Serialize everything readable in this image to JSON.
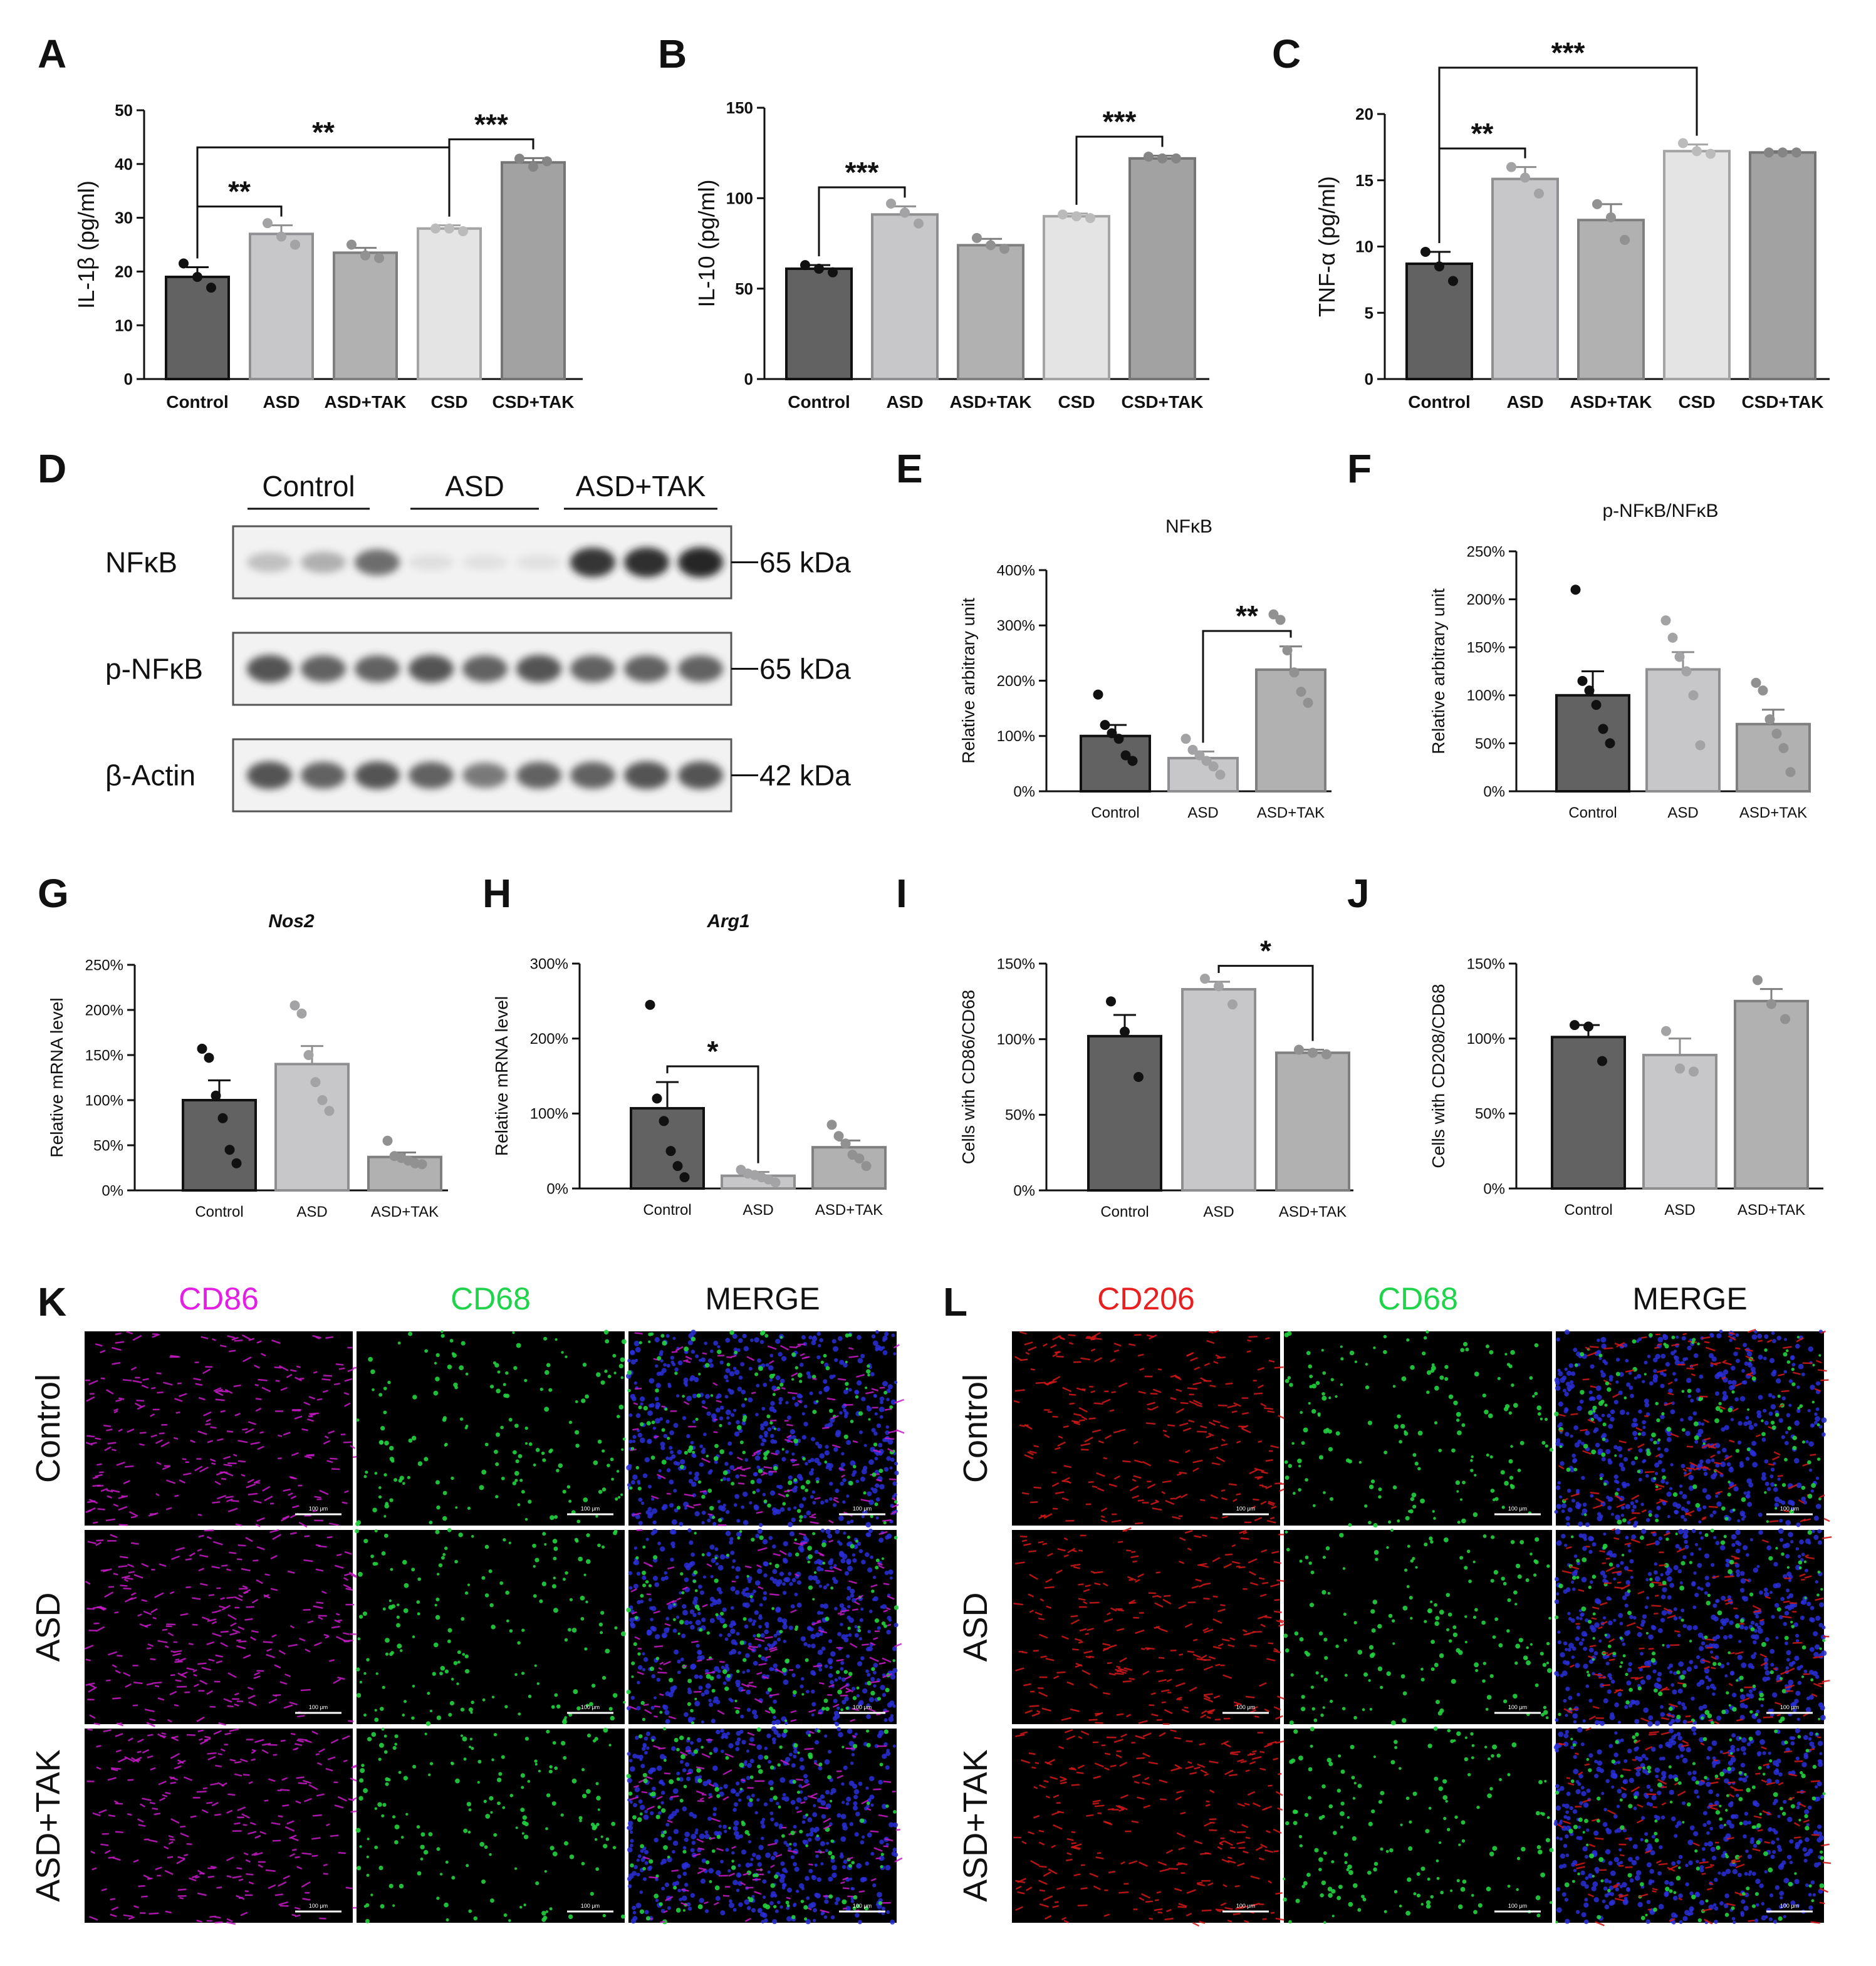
{
  "colors": {
    "control": "#626262",
    "asd": "#c7c7c9",
    "asd_tak": "#b1b1b2",
    "csd": "#e4e4e5",
    "csd_tak": "#a2a2a3",
    "axis": "#111111"
  },
  "panel_letters": [
    "A",
    "B",
    "C",
    "D",
    "E",
    "F",
    "G",
    "H",
    "I",
    "J",
    "K",
    "L"
  ],
  "chart_data": [
    {
      "id": "A",
      "type": "bar",
      "title": "",
      "xlabel": "",
      "ylabel": "IL-1β (pg/ml)",
      "ylim": [
        0,
        50
      ],
      "yticks": [
        0,
        10,
        20,
        30,
        40,
        50
      ],
      "tick_suffix": "",
      "categories": [
        "Control",
        "ASD",
        "ASD+TAK",
        "CSD",
        "CSD+TAK"
      ],
      "values": [
        19,
        27,
        23.5,
        28,
        40.3
      ],
      "sem": [
        1.8,
        1.6,
        0.9,
        0.6,
        0.8
      ],
      "points": [
        [
          21.5,
          19,
          17
        ],
        [
          29,
          26.5,
          25
        ],
        [
          25,
          23,
          22.5
        ],
        [
          28,
          28,
          27.5
        ],
        [
          41,
          39.5,
          40.5
        ]
      ],
      "sig": [
        {
          "a": 0,
          "b": 1,
          "label": "**"
        },
        {
          "a": 0,
          "b": 3,
          "label": "**"
        },
        {
          "a": 3,
          "b": 4,
          "label": "***"
        }
      ]
    },
    {
      "id": "B",
      "type": "bar",
      "title": "",
      "xlabel": "",
      "ylabel": "IL-10 (pg/ml)",
      "ylim": [
        0,
        150
      ],
      "yticks": [
        0,
        50,
        100,
        150
      ],
      "tick_suffix": "",
      "categories": [
        "Control",
        "ASD",
        "ASD+TAK",
        "CSD",
        "CSD+TAK"
      ],
      "values": [
        61,
        91,
        74,
        90,
        122
      ],
      "sem": [
        2,
        4.5,
        3.5,
        1.5,
        1.5
      ],
      "points": [
        [
          63,
          61,
          59
        ],
        [
          97,
          92,
          86
        ],
        [
          78,
          74,
          72
        ],
        [
          91,
          90,
          89
        ],
        [
          123,
          122,
          122
        ]
      ],
      "sig": [
        {
          "a": 0,
          "b": 1,
          "label": "***"
        },
        {
          "a": 3,
          "b": 4,
          "label": "***"
        }
      ]
    },
    {
      "id": "C",
      "type": "bar",
      "title": "",
      "xlabel": "",
      "ylabel": "TNF-α (pg/ml)",
      "ylim": [
        0,
        20
      ],
      "yticks": [
        0,
        5,
        10,
        15,
        20
      ],
      "tick_suffix": "",
      "categories": [
        "Control",
        "ASD",
        "ASD+TAK",
        "CSD",
        "CSD+TAK"
      ],
      "values": [
        8.7,
        15.1,
        12,
        17.2,
        17.1
      ],
      "sem": [
        0.9,
        0.9,
        1.2,
        0.5,
        0.1
      ],
      "points": [
        [
          9.6,
          8.5,
          7.4
        ],
        [
          16,
          15.2,
          14
        ],
        [
          13.2,
          12.2,
          10.5
        ],
        [
          17.8,
          17.2,
          17
        ],
        [
          17.1,
          17.1,
          17.1
        ]
      ],
      "sig": [
        {
          "a": 0,
          "b": 1,
          "label": "**"
        },
        {
          "a": 0,
          "b": 3,
          "label": "***"
        }
      ]
    },
    {
      "id": "E",
      "type": "bar",
      "title": "NFκB",
      "xlabel": "",
      "ylabel": "Relative arbitrary unit",
      "ylim": [
        0,
        400
      ],
      "yticks": [
        0,
        100,
        200,
        300,
        400
      ],
      "tick_suffix": "%",
      "categories": [
        "Control",
        "ASD",
        "ASD+TAK"
      ],
      "values": [
        100,
        60,
        220
      ],
      "sem": [
        20,
        12,
        42
      ],
      "points": [
        [
          175,
          120,
          105,
          95,
          65,
          55
        ],
        [
          95,
          75,
          65,
          55,
          45,
          30
        ],
        [
          320,
          310,
          255,
          215,
          180,
          160
        ]
      ],
      "sig": [
        {
          "a": 1,
          "b": 2,
          "label": "**"
        }
      ]
    },
    {
      "id": "F",
      "type": "bar",
      "title": "p-NFκB/NFκB",
      "xlabel": "",
      "ylabel": "Relative arbitrary unit",
      "ylim": [
        0,
        250
      ],
      "yticks": [
        0,
        50,
        100,
        150,
        200,
        250
      ],
      "tick_suffix": "%",
      "categories": [
        "Control",
        "ASD",
        "ASD+TAK"
      ],
      "values": [
        100,
        127,
        70
      ],
      "sem": [
        25,
        18,
        15
      ],
      "points": [
        [
          210,
          115,
          105,
          90,
          65,
          50
        ],
        [
          178,
          160,
          140,
          125,
          100,
          48
        ],
        [
          113,
          105,
          75,
          60,
          45,
          20
        ]
      ],
      "sig": []
    },
    {
      "id": "G",
      "type": "bar",
      "title": "Nos2",
      "xlabel": "",
      "ylabel": "Relative mRNA level",
      "ylim": [
        0,
        250
      ],
      "yticks": [
        0,
        50,
        100,
        150,
        200,
        250
      ],
      "tick_suffix": "%",
      "categories": [
        "Control",
        "ASD",
        "ASD+TAK"
      ],
      "values": [
        100,
        140,
        37
      ],
      "sem": [
        22,
        20,
        5
      ],
      "points": [
        [
          157,
          147,
          105,
          80,
          45,
          30
        ],
        [
          205,
          196,
          150,
          120,
          100,
          88
        ],
        [
          55,
          38,
          36,
          33,
          30,
          29
        ]
      ],
      "sig": []
    },
    {
      "id": "H",
      "type": "bar",
      "title": "Arg1",
      "xlabel": "",
      "ylabel": "Relative mRNA level",
      "ylim": [
        0,
        300
      ],
      "yticks": [
        0,
        100,
        200,
        300
      ],
      "tick_suffix": "%",
      "categories": [
        "Control",
        "ASD",
        "ASD+TAK"
      ],
      "values": [
        107,
        17,
        55
      ],
      "sem": [
        35,
        5,
        9
      ],
      "points": [
        [
          245,
          120,
          90,
          50,
          30,
          15
        ],
        [
          25,
          20,
          18,
          15,
          12,
          8
        ],
        [
          85,
          70,
          60,
          45,
          40,
          30
        ]
      ],
      "sig": [
        {
          "a": 0,
          "b": 1,
          "label": "*"
        }
      ]
    },
    {
      "id": "I",
      "type": "bar",
      "title": "",
      "xlabel": "",
      "ylabel": "Cells with CD86/CD68",
      "ylim": [
        0,
        150
      ],
      "yticks": [
        0,
        50,
        100,
        150
      ],
      "tick_suffix": "%",
      "categories": [
        "Control",
        "ASD",
        "ASD+TAK"
      ],
      "values": [
        102,
        133,
        91
      ],
      "sem": [
        14,
        5,
        2
      ],
      "points": [
        [
          125,
          105,
          75
        ],
        [
          140,
          135,
          123
        ],
        [
          93,
          91,
          90
        ]
      ],
      "sig": [
        {
          "a": 1,
          "b": 2,
          "label": "*"
        }
      ]
    },
    {
      "id": "J",
      "type": "bar",
      "title": "",
      "xlabel": "",
      "ylabel": "Cells with CD208/CD68",
      "ylim": [
        0,
        150
      ],
      "yticks": [
        0,
        50,
        100,
        150
      ],
      "tick_suffix": "%",
      "categories": [
        "Control",
        "ASD",
        "ASD+TAK"
      ],
      "values": [
        101,
        89,
        125
      ],
      "sem": [
        8,
        11,
        8
      ],
      "points": [
        [
          109,
          108,
          85
        ],
        [
          105,
          80,
          78
        ],
        [
          139,
          123,
          113
        ]
      ],
      "sig": []
    }
  ],
  "blot": {
    "groups": [
      "Control",
      "ASD",
      "ASD+TAK"
    ],
    "rows": [
      {
        "label": "NFκB",
        "kda": "65 kDa",
        "intensity": [
          0.35,
          0.45,
          0.75,
          0.12,
          0.1,
          0.1,
          0.95,
          0.97,
          1.0
        ]
      },
      {
        "label": "p-NFκB",
        "kda": "65 kDa",
        "intensity": [
          0.85,
          0.8,
          0.8,
          0.85,
          0.8,
          0.85,
          0.8,
          0.8,
          0.8
        ]
      },
      {
        "label": "β-Actin",
        "kda": "42 kDa",
        "intensity": [
          0.85,
          0.8,
          0.85,
          0.8,
          0.7,
          0.8,
          0.8,
          0.85,
          0.85
        ]
      }
    ]
  },
  "micro_k": {
    "channels": [
      {
        "label": "CD86",
        "color": "#e21fe2"
      },
      {
        "label": "CD68",
        "color": "#1fd34a"
      },
      {
        "label": "MERGE",
        "color": "#111111"
      }
    ],
    "rows": [
      "Control",
      "ASD",
      "ASD+TAK"
    ],
    "scale_label": "100 μm"
  },
  "micro_l": {
    "channels": [
      {
        "label": "CD206",
        "color": "#e8201f"
      },
      {
        "label": "CD68",
        "color": "#1fd34a"
      },
      {
        "label": "MERGE",
        "color": "#111111"
      }
    ],
    "rows": [
      "Control",
      "ASD",
      "ASD+TAK"
    ],
    "scale_label": "100 μm"
  }
}
